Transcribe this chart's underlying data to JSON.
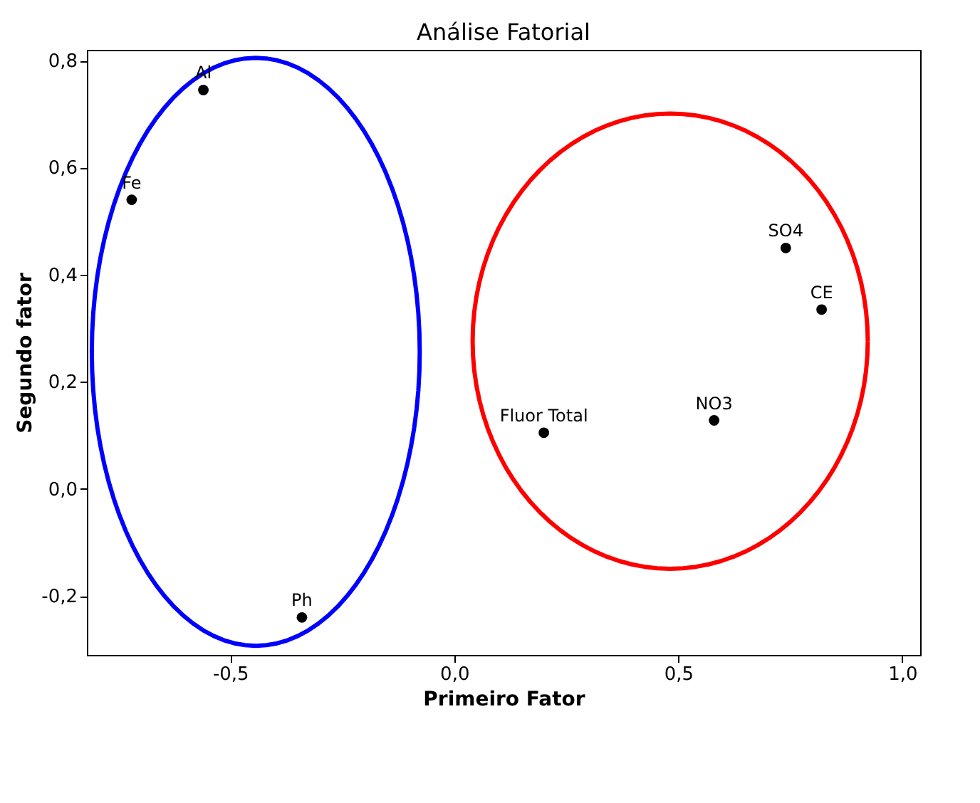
{
  "chart_data": {
    "type": "scatter",
    "title": "Análise Fatorial",
    "xlabel": "Primeiro Fator",
    "ylabel": "Segundo fator",
    "xlim": [
      -0.82,
      1.04
    ],
    "ylim": [
      -0.31,
      0.82
    ],
    "xticks": [
      {
        "value": -0.5,
        "label": "-0,5"
      },
      {
        "value": 0,
        "label": "0,0"
      },
      {
        "value": 0.5,
        "label": "0,5"
      },
      {
        "value": 1,
        "label": "1,0"
      }
    ],
    "yticks": [
      {
        "value": -0.2,
        "label": "-0,2"
      },
      {
        "value": 0,
        "label": "0,0"
      },
      {
        "value": 0.2,
        "label": "0,2"
      },
      {
        "value": 0.4,
        "label": "0,4"
      },
      {
        "value": 0.6,
        "label": "0,6"
      },
      {
        "value": 0.8,
        "label": "0,8"
      }
    ],
    "grid": false,
    "marker": "circle",
    "series": [
      {
        "color": "#000000",
        "x": [
          -0.56,
          -0.72,
          -0.34,
          0.2,
          0.58,
          0.74,
          0.82
        ],
        "values": [
          0.745,
          0.54,
          -0.24,
          0.105,
          0.128,
          0.45,
          0.335
        ]
      }
    ],
    "annotations": [
      {
        "text": "Al",
        "x": -0.56,
        "y": 0.745
      },
      {
        "text": "Fe",
        "x": -0.72,
        "y": 0.54
      },
      {
        "text": "Ph",
        "x": -0.34,
        "y": -0.24
      },
      {
        "text": "Fluor Total",
        "x": 0.2,
        "y": 0.105
      },
      {
        "text": "NO3",
        "x": 0.58,
        "y": 0.128
      },
      {
        "text": "SO4",
        "x": 0.74,
        "y": 0.45
      },
      {
        "text": "CE",
        "x": 0.82,
        "y": 0.335
      }
    ]
  }
}
